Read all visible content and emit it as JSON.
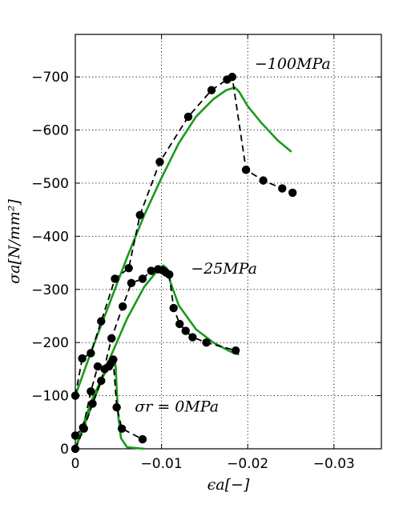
{
  "chart_data": {
    "type": "line",
    "xlabel": "ϵa[−]",
    "ylabel": "σa[N/mm²]",
    "x_ticks": [
      0,
      -0.01,
      -0.02,
      -0.03
    ],
    "x_tick_labels": [
      "0",
      "−0.01",
      "−0.02",
      "−0.03"
    ],
    "y_ticks": [
      0,
      -100,
      -200,
      -300,
      -400,
      -500,
      -600,
      -700
    ],
    "y_tick_labels": [
      "0",
      "−100",
      "−200",
      "−300",
      "−400",
      "−500",
      "−600",
      "−700"
    ],
    "xlim": [
      0,
      -0.0355
    ],
    "ylim": [
      0,
      -780
    ],
    "grid": true,
    "colors": {
      "experiment": "#000000",
      "model": "#1a9a1a"
    },
    "annotations": [
      {
        "text": "−100MPa",
        "x": -0.0208,
        "y": -715
      },
      {
        "text": "−25MPa",
        "x": -0.0134,
        "y": -330
      },
      {
        "text": "σr = 0MPa",
        "x": -0.0069,
        "y": -70
      }
    ],
    "series": [
      {
        "style": "experiment-markers-dashed",
        "x": [
          0,
          -0.0008,
          -0.0018,
          -0.003,
          -0.0046,
          -0.0062,
          -0.0075,
          -0.0098,
          -0.0131,
          -0.0158,
          -0.0176,
          -0.0182,
          -0.0198,
          -0.0218,
          -0.024,
          -0.0252
        ],
        "y": [
          -100,
          -170,
          -180,
          -240,
          -320,
          -340,
          -440,
          -540,
          -625,
          -675,
          -695,
          -700,
          -525,
          -505,
          -490,
          -482
        ]
      },
      {
        "style": "experiment-markers-dashed",
        "x": [
          0,
          -0.001,
          -0.002,
          -0.003,
          -0.0042,
          -0.0055,
          -0.0065,
          -0.0078,
          -0.0088,
          -0.0096,
          -0.0101,
          -0.0105,
          -0.0109,
          -0.0114,
          -0.0121,
          -0.0128,
          -0.0136,
          -0.0152,
          -0.0186
        ],
        "y": [
          0,
          -38,
          -85,
          -128,
          -208,
          -268,
          -312,
          -320,
          -335,
          -338,
          -336,
          -332,
          -328,
          -265,
          -235,
          -222,
          -210,
          -200,
          -185
        ]
      },
      {
        "style": "experiment-markers-dashed",
        "x": [
          0,
          -0.0009,
          -0.0018,
          -0.0026,
          -0.0034,
          -0.0039,
          -0.0041,
          -0.0044,
          -0.0048,
          -0.0054,
          -0.0078
        ],
        "y": [
          -25,
          -40,
          -108,
          -155,
          -150,
          -155,
          -160,
          -168,
          -78,
          -38,
          -18
        ]
      },
      {
        "style": "model-green",
        "x": [
          0,
          -0.002,
          -0.004,
          -0.006,
          -0.008,
          -0.01,
          -0.012,
          -0.014,
          -0.016,
          -0.0175,
          -0.0185,
          -0.019,
          -0.02,
          -0.0215,
          -0.0235,
          -0.025
        ],
        "y": [
          -100,
          -190,
          -275,
          -360,
          -440,
          -510,
          -575,
          -625,
          -658,
          -675,
          -680,
          -672,
          -645,
          -615,
          -580,
          -560
        ]
      },
      {
        "style": "model-green",
        "x": [
          0,
          -0.002,
          -0.004,
          -0.006,
          -0.008,
          -0.0095,
          -0.0102,
          -0.0106,
          -0.011,
          -0.012,
          -0.014,
          -0.016,
          -0.018,
          -0.0189
        ],
        "y": [
          0,
          -85,
          -170,
          -245,
          -305,
          -335,
          -345,
          -340,
          -315,
          -270,
          -225,
          -200,
          -183,
          -178
        ]
      },
      {
        "style": "model-green",
        "x": [
          0,
          -0.001,
          -0.002,
          -0.003,
          -0.004,
          -0.0044,
          -0.0046,
          -0.0047,
          -0.0048,
          -0.005,
          -0.0053,
          -0.006,
          -0.008
        ],
        "y": [
          0,
          -50,
          -95,
          -130,
          -158,
          -165,
          -165,
          -150,
          -110,
          -60,
          -20,
          -3,
          0
        ]
      }
    ]
  }
}
